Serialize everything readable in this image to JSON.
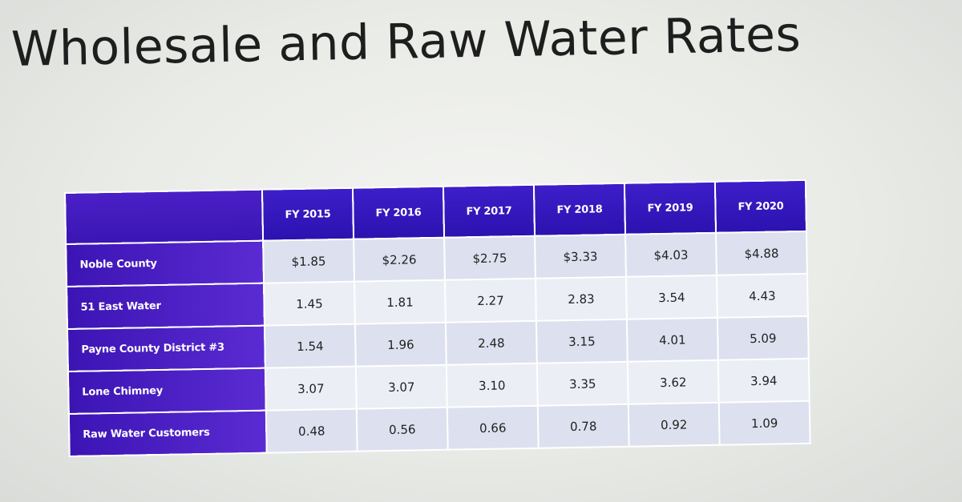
{
  "slide": {
    "title": "Wholesale and Raw Water Rates"
  },
  "table": {
    "columns": [
      "",
      "FY 2015",
      "FY 2016",
      "FY 2017",
      "FY 2018",
      "FY 2019",
      "FY 2020"
    ],
    "rows": [
      {
        "label": "Noble County",
        "values": [
          "$1.85",
          "$2.26",
          "$2.75",
          "$3.33",
          "$4.03",
          "$4.88"
        ]
      },
      {
        "label": "51 East Water",
        "values": [
          "1.45",
          "1.81",
          "2.27",
          "2.83",
          "3.54",
          "4.43"
        ]
      },
      {
        "label": "Payne County District #3",
        "values": [
          "1.54",
          "1.96",
          "2.48",
          "3.15",
          "4.01",
          "5.09"
        ]
      },
      {
        "label": "Lone Chimney",
        "values": [
          "3.07",
          "3.07",
          "3.10",
          "3.35",
          "3.62",
          "3.94"
        ]
      },
      {
        "label": "Raw Water Customers",
        "values": [
          "0.48",
          "0.56",
          "0.66",
          "0.78",
          "0.92",
          "1.09"
        ]
      }
    ]
  }
}
